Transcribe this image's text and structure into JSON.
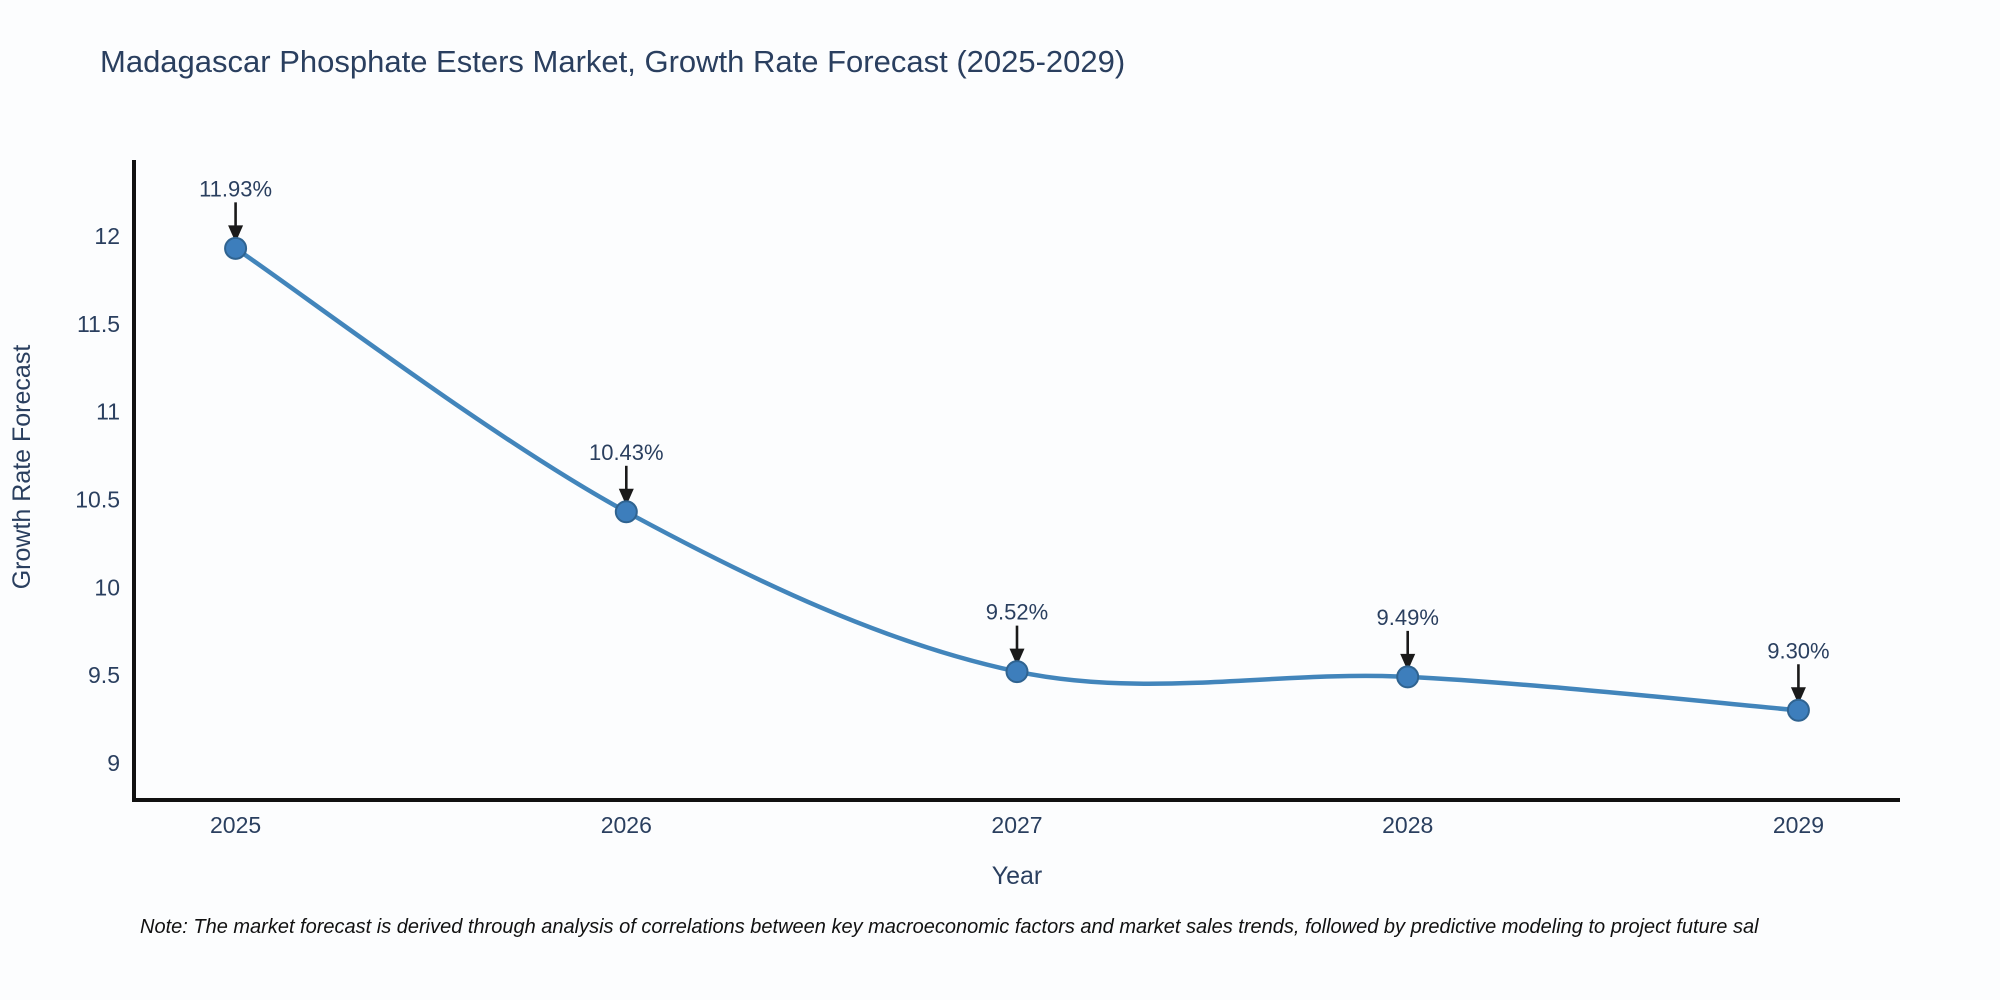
{
  "chart": {
    "title": "Madagascar Phosphate Esters Market, Growth Rate Forecast (2025-2029)",
    "xlabel": "Year",
    "ylabel": "Growth Rate Forecast"
  },
  "note": {
    "text": "Note: The market forecast is derived through analysis of correlations between key macroeconomic factors and market sales trends, followed by predictive modeling to project future sal"
  },
  "chart_data": {
    "type": "line",
    "title": "Madagascar Phosphate Esters Market, Growth Rate Forecast (2025-2029)",
    "xlabel": "Year",
    "ylabel": "Growth Rate Forecast",
    "x": [
      2025,
      2026,
      2027,
      2028,
      2029
    ],
    "y": [
      11.93,
      10.43,
      9.52,
      9.49,
      9.3
    ],
    "point_labels": [
      "11.93%",
      "10.43%",
      "9.52%",
      "9.49%",
      "9.30%"
    ],
    "yticks": [
      9,
      9.5,
      10,
      10.5,
      11,
      11.5,
      12
    ],
    "xticks": [
      2025,
      2026,
      2027,
      2028,
      2029
    ],
    "xlim": [
      2024.74,
      2029.26
    ],
    "ylim": [
      8.789,
      12.433
    ],
    "line_shape": "spline",
    "grid": false,
    "legend_visible": false,
    "colors": {
      "line": "#4285bb",
      "marker_fill": "#3d7ebc",
      "marker_edge": "#2f6390",
      "annotation_arrow": "#1a1a1a",
      "axis": "#111111",
      "text": "#2a3f5f"
    }
  }
}
